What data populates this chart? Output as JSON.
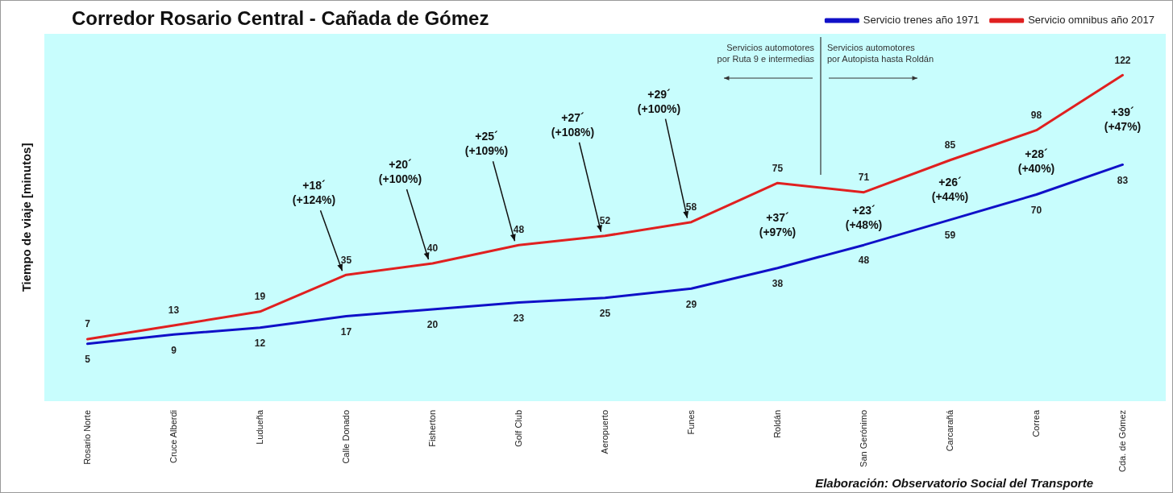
{
  "chart_data": {
    "type": "line",
    "title": "Corredor Rosario Central - Cañada de Gómez",
    "ylabel": "Tiempo de viaje [minutos]",
    "categories": [
      "Rosario Norte",
      "Cruce Alberdi",
      "Ludueña",
      "Calle Donado",
      "Fisherton",
      "Golf Club",
      "Aeropuerto",
      "Funes",
      "Roldán",
      "San Gerónimo",
      "Carcarañá",
      "Correa",
      "Cda. de Gómez"
    ],
    "series": [
      {
        "name": "Servicio trenes año 1971",
        "color": "#1010c8",
        "values": [
          5,
          9,
          12,
          17,
          20,
          23,
          25,
          29,
          38,
          48,
          59,
          70,
          83
        ]
      },
      {
        "name": "Servicio omnibus año 2017",
        "color": "#e02020",
        "values": [
          7,
          13,
          19,
          35,
          40,
          48,
          52,
          58,
          75,
          71,
          85,
          98,
          122
        ]
      }
    ],
    "data_labels": true,
    "marker": "none",
    "line_style": "solid",
    "grid": false,
    "legend": "top right",
    "annotations": [
      {
        "text": "+18´\n(+124%)",
        "x": "Calle Donado",
        "y": 35
      },
      {
        "text": "+20´\n(+100%)",
        "x": "Fisherton",
        "y": 40
      },
      {
        "text": "+25´\n(+109%)",
        "x": "Golf Club",
        "y": 48
      },
      {
        "text": "+27´\n(+108%)",
        "x": "Aeropuerto",
        "y": 52
      },
      {
        "text": "+29´\n(+100%)",
        "x": "Funes",
        "y": 58
      },
      {
        "text": "+37´\n(+97%)",
        "x": "Roldán",
        "y": 75
      },
      {
        "text": "+23´\n(+48%)",
        "x": "San Gerónimo",
        "y": 71
      },
      {
        "text": "+26´\n(+44%)",
        "x": "Carcarañá",
        "y": 85
      },
      {
        "text": "+28´\n(+40%)",
        "x": "Correa",
        "y": 98
      },
      {
        "text": "+39´\n(+47%)",
        "x": "Cda. de Gómez",
        "y": 122
      },
      "Servicios automotores\npor Ruta 9 e intermedias",
      "Servicios automotores\npor Autopista hasta Roldán",
      "Elaboración: Observatorio Social del Transporte"
    ]
  }
}
